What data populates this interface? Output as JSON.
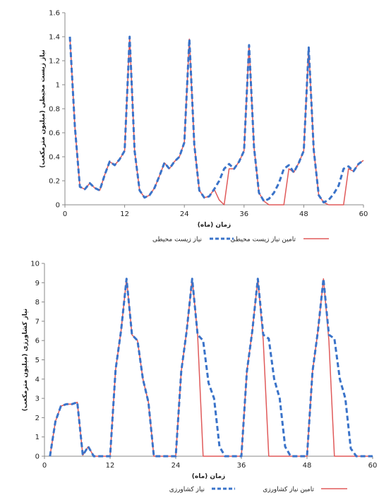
{
  "chart_data": [
    {
      "type": "line",
      "xlabel": "زمان (ماه)",
      "ylabel": "نیاز زیست محیطی (میلیون مترمکعب)",
      "xlim": [
        0,
        60
      ],
      "ylim": [
        0,
        1.6
      ],
      "xticks": [
        0,
        12,
        24,
        36,
        48,
        60
      ],
      "yticks": [
        0,
        0.2,
        0.4,
        0.6,
        0.8,
        1,
        1.2,
        1.4,
        1.6
      ],
      "ytick_labels": [
        "0",
        "0.2",
        "0.4",
        "0.6",
        "0.8",
        "1",
        "1.2",
        "1.4",
        "1.6"
      ],
      "grid": false,
      "legend_position": "bottom",
      "series": [
        {
          "name": "نیاز زیست محیطی",
          "style": "dashed",
          "color": "#3a73c9",
          "x": [
            1,
            2,
            3,
            4,
            5,
            6,
            7,
            8,
            9,
            10,
            11,
            12,
            13,
            14,
            15,
            16,
            17,
            18,
            19,
            20,
            21,
            22,
            23,
            24,
            25,
            26,
            27,
            28,
            29,
            30,
            31,
            32,
            33,
            34,
            35,
            36,
            37,
            38,
            39,
            40,
            41,
            42,
            43,
            44,
            45,
            46,
            47,
            48,
            49,
            50,
            51,
            52,
            53,
            54,
            55,
            56,
            57,
            58,
            59,
            60
          ],
          "y": [
            1.4,
            0.65,
            0.15,
            0.13,
            0.18,
            0.14,
            0.12,
            0.25,
            0.36,
            0.33,
            0.38,
            0.45,
            1.4,
            0.45,
            0.12,
            0.06,
            0.08,
            0.14,
            0.24,
            0.35,
            0.3,
            0.36,
            0.4,
            0.52,
            1.38,
            0.5,
            0.12,
            0.06,
            0.07,
            0.13,
            0.2,
            0.3,
            0.34,
            0.3,
            0.36,
            0.45,
            1.33,
            0.48,
            0.1,
            0.03,
            0.05,
            0.1,
            0.18,
            0.3,
            0.33,
            0.27,
            0.35,
            0.45,
            1.31,
            0.46,
            0.08,
            0.02,
            0.04,
            0.09,
            0.16,
            0.3,
            0.32,
            0.28,
            0.34,
            0.37
          ]
        },
        {
          "name": "تامین نیاز زیست محیطی",
          "style": "solid",
          "color": "#e05a5a",
          "x": [
            1,
            2,
            3,
            4,
            5,
            6,
            7,
            8,
            9,
            10,
            11,
            12,
            13,
            14,
            15,
            16,
            17,
            18,
            19,
            20,
            21,
            22,
            23,
            24,
            25,
            26,
            27,
            28,
            29,
            30,
            31,
            32,
            33,
            34,
            35,
            36,
            37,
            38,
            39,
            40,
            41,
            42,
            43,
            44,
            45,
            46,
            47,
            48,
            49,
            50,
            51,
            52,
            53,
            54,
            55,
            56,
            57,
            58,
            59,
            60
          ],
          "y": [
            1.4,
            0.65,
            0.15,
            0.13,
            0.18,
            0.14,
            0.12,
            0.25,
            0.36,
            0.33,
            0.38,
            0.45,
            1.4,
            0.45,
            0.12,
            0.06,
            0.08,
            0.14,
            0.24,
            0.35,
            0.3,
            0.36,
            0.4,
            0.52,
            1.38,
            0.5,
            0.12,
            0.06,
            0.07,
            0.13,
            0.04,
            0.0,
            0.3,
            0.3,
            0.36,
            0.45,
            1.33,
            0.48,
            0.1,
            0.03,
            0.0,
            0.0,
            0.0,
            0.0,
            0.3,
            0.27,
            0.35,
            0.45,
            1.31,
            0.46,
            0.08,
            0.02,
            0.0,
            0.0,
            0.0,
            0.0,
            0.3,
            0.28,
            0.34,
            0.37
          ]
        }
      ]
    },
    {
      "type": "line",
      "xlabel": "زمان (ماه)",
      "ylabel": "نیاز کشاورزی (میلیون مترمکعب)",
      "xlim": [
        0,
        60
      ],
      "ylim": [
        0,
        10
      ],
      "xticks": [
        0,
        12,
        24,
        36,
        48,
        60
      ],
      "yticks": [
        0,
        1,
        2,
        3,
        4,
        5,
        6,
        7,
        8,
        9,
        10
      ],
      "ytick_labels": [
        "0",
        "1",
        "2",
        "3",
        "4",
        "5",
        "6",
        "7",
        "8",
        "9",
        "10"
      ],
      "grid": false,
      "legend_position": "bottom",
      "series": [
        {
          "name": "نیاز کشاورزی",
          "style": "dashed",
          "color": "#3a73c9",
          "x": [
            1,
            2,
            3,
            4,
            5,
            6,
            7,
            8,
            9,
            10,
            11,
            12,
            13,
            14,
            15,
            16,
            17,
            18,
            19,
            20,
            21,
            22,
            23,
            24,
            25,
            26,
            27,
            28,
            29,
            30,
            31,
            32,
            33,
            34,
            35,
            36,
            37,
            38,
            39,
            40,
            41,
            42,
            43,
            44,
            45,
            46,
            47,
            48,
            49,
            50,
            51,
            52,
            53,
            54,
            55,
            56,
            57,
            58,
            59,
            60
          ],
          "y": [
            0,
            1.8,
            2.6,
            2.7,
            2.7,
            2.8,
            0.05,
            0.5,
            0,
            0,
            0,
            0,
            4.5,
            6.5,
            9.2,
            6.3,
            6.0,
            4.0,
            2.8,
            0,
            0,
            0,
            0,
            0,
            4.4,
            6.5,
            9.2,
            6.3,
            6.0,
            3.8,
            3.0,
            0.5,
            0,
            0,
            0,
            0,
            4.4,
            6.5,
            9.2,
            6.3,
            6.1,
            4.0,
            3.0,
            0.5,
            0,
            0,
            0,
            0,
            4.4,
            6.5,
            9.2,
            6.3,
            6.1,
            4.0,
            3.0,
            0.4,
            0,
            0,
            0,
            0
          ]
        },
        {
          "name": "تامین نیاز کشاورزی",
          "style": "solid",
          "color": "#e05a5a",
          "x": [
            1,
            2,
            3,
            4,
            5,
            6,
            7,
            8,
            9,
            10,
            11,
            12,
            13,
            14,
            15,
            16,
            17,
            18,
            19,
            20,
            21,
            22,
            23,
            24,
            25,
            26,
            27,
            28,
            29,
            30,
            31,
            32,
            33,
            34,
            35,
            36,
            37,
            38,
            39,
            40,
            41,
            42,
            43,
            44,
            45,
            46,
            47,
            48,
            49,
            50,
            51,
            52,
            53,
            54,
            55,
            56,
            57,
            58,
            59,
            60
          ],
          "y": [
            0,
            1.8,
            2.6,
            2.7,
            2.7,
            2.8,
            0.05,
            0.5,
            0,
            0,
            0,
            0,
            4.5,
            6.5,
            9.2,
            6.3,
            6.0,
            4.0,
            2.8,
            0,
            0,
            0,
            0,
            0,
            4.4,
            6.5,
            9.2,
            6.3,
            0,
            0,
            0,
            0,
            0,
            0,
            0,
            0,
            4.4,
            6.5,
            9.2,
            6.0,
            0,
            0,
            0,
            0,
            0,
            0,
            0,
            0,
            4.4,
            6.5,
            9.2,
            6.0,
            0,
            0,
            0,
            0,
            0,
            0,
            0,
            0
          ]
        }
      ]
    }
  ]
}
